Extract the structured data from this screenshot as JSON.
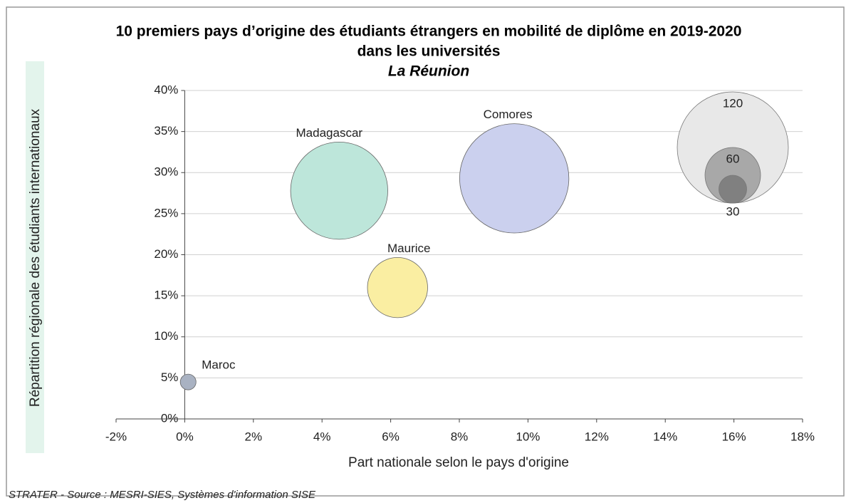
{
  "chart_data": {
    "type": "bubble",
    "title": "10 premiers pays d’origine des étudiants étrangers en mobilité de diplôme en 2019-2020",
    "title_line2": "dans les universités",
    "subtitle": "La Réunion",
    "xlabel": "Part nationale selon le pays d'origine",
    "ylabel": "Répartition régionale des étudiants internationaux",
    "source": "STRATER - Source : MESRI-SIES, Systèmes d'information SISE",
    "series": [
      {
        "name": "Madagascar",
        "color": "#bde6da",
        "x": [
          4.5
        ],
        "values": [
          27.8
        ],
        "sizes": [
          105
        ]
      },
      {
        "name": "Comores",
        "color": "#cbd0ee",
        "x": [
          9.6
        ],
        "values": [
          29.3
        ],
        "sizes": [
          118
        ]
      },
      {
        "name": "Maurice",
        "color": "#faeea2",
        "x": [
          6.2
        ],
        "values": [
          16
        ],
        "sizes": [
          65
        ]
      },
      {
        "name": "Maroc",
        "color": "#a9b2c2",
        "x": [
          0.1
        ],
        "values": [
          4.5
        ],
        "sizes": [
          17
        ]
      }
    ],
    "size_legend": [
      {
        "value": 120,
        "color": "#e8e8e8"
      },
      {
        "value": 60,
        "color": "#a8a8a8"
      },
      {
        "value": 30,
        "color": "#808080"
      }
    ],
    "xlim": [
      -2,
      18
    ],
    "xticks": [
      {
        "value": -2,
        "label": "-2%"
      },
      {
        "value": 0,
        "label": "0%"
      },
      {
        "value": 2,
        "label": "2%"
      },
      {
        "value": 4,
        "label": "4%"
      },
      {
        "value": 6,
        "label": "6%"
      },
      {
        "value": 8,
        "label": "8%"
      },
      {
        "value": 10,
        "label": "10%"
      },
      {
        "value": 12,
        "label": "12%"
      },
      {
        "value": 14,
        "label": "14%"
      },
      {
        "value": 16,
        "label": "16%"
      },
      {
        "value": 18,
        "label": "18%"
      }
    ],
    "ylim": [
      0,
      40
    ],
    "yticks": [
      {
        "value": 0,
        "label": "0%"
      },
      {
        "value": 5,
        "label": "5%"
      },
      {
        "value": 10,
        "label": "10%"
      },
      {
        "value": 15,
        "label": "15%"
      },
      {
        "value": 20,
        "label": "20%"
      },
      {
        "value": 25,
        "label": "25%"
      },
      {
        "value": 30,
        "label": "30%"
      },
      {
        "value": 35,
        "label": "35%"
      },
      {
        "value": 40,
        "label": "40%"
      }
    ],
    "grid": true
  }
}
